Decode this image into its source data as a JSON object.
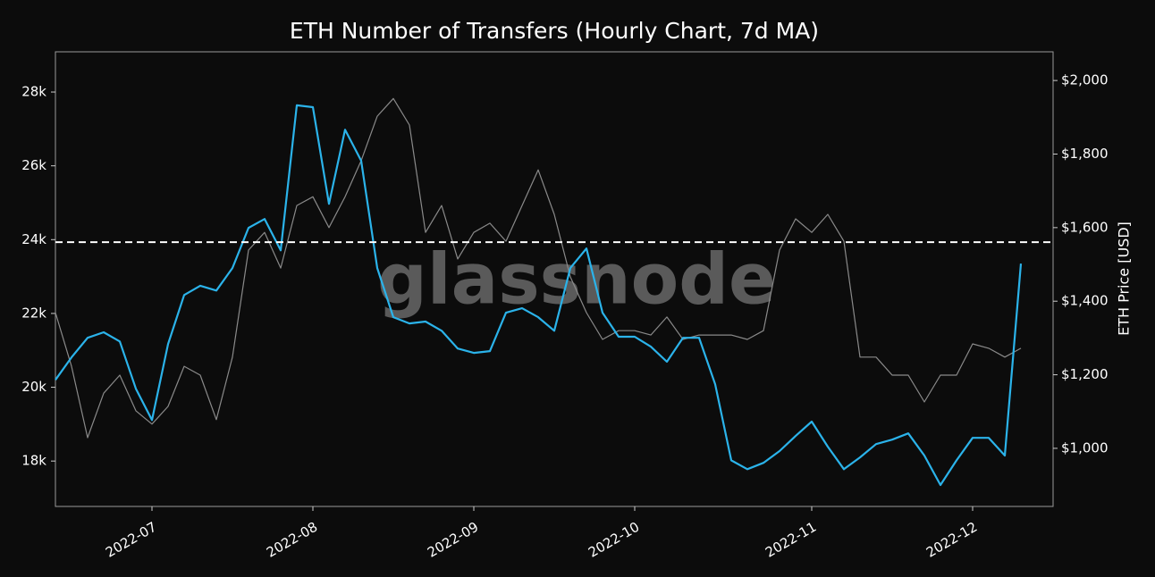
{
  "chart_data": {
    "type": "line",
    "title": "ETH Number of Transfers (Hourly Chart, 7d MA)",
    "y2_label": "ETH Price [USD]",
    "watermark": "glassnode",
    "categories": [
      null,
      null,
      null,
      null,
      null,
      null,
      "2022-07",
      null,
      null,
      null,
      null,
      null,
      null,
      null,
      null,
      null,
      "2022-08",
      null,
      null,
      null,
      null,
      null,
      null,
      null,
      null,
      null,
      "2022-09",
      null,
      null,
      null,
      null,
      null,
      null,
      null,
      null,
      null,
      "2022-10",
      null,
      null,
      null,
      null,
      null,
      null,
      null,
      null,
      null,
      null,
      "2022-11",
      null,
      null,
      null,
      null,
      null,
      null,
      null,
      null,
      null,
      "2022-12",
      null,
      null,
      null,
      null,
      null
    ],
    "series": [
      {
        "name": "Number of Transfers (7d MA)",
        "color": "#2bb3ea",
        "axis": "y",
        "values": [
          20200,
          20810,
          21340,
          21490,
          21240,
          19960,
          19110,
          21170,
          22500,
          22750,
          22620,
          23230,
          24320,
          24560,
          23710,
          27640,
          27590,
          24970,
          26980,
          26140,
          23230,
          21900,
          21730,
          21780,
          21530,
          21050,
          20930,
          20980,
          22020,
          22140,
          21900,
          21530,
          23230,
          23760,
          22020,
          21370,
          21370,
          21100,
          20690,
          21340,
          21340,
          20080,
          18020,
          17780,
          17950,
          18270,
          18680,
          19070,
          18390,
          17780,
          18100,
          18460,
          18580,
          18750,
          18150,
          17350,
          18020,
          18630,
          18630,
          18150,
          23350,
          null,
          null
        ]
      },
      {
        "name": "ETH Price [USD]",
        "color": "#8a8a8a",
        "axis": "y2",
        "values": [
          1369,
          1223,
          1029,
          1150,
          1199,
          1102,
          1066,
          1114,
          1223,
          1199,
          1078,
          1248,
          1539,
          1587,
          1490,
          1660,
          1684,
          1600,
          1684,
          1782,
          1903,
          1951,
          1879,
          1587,
          1660,
          1515,
          1587,
          1612,
          1563,
          1660,
          1757,
          1636,
          1466,
          1369,
          1296,
          1320,
          1320,
          1308,
          1357,
          1296,
          1308,
          1308,
          1308,
          1296,
          1320,
          1539,
          1624,
          1587,
          1636,
          1563,
          1248,
          1248,
          1199,
          1199,
          1126,
          1199,
          1199,
          1284,
          1272,
          1248,
          1272,
          null,
          null
        ]
      }
    ],
    "hline": 23930,
    "ylim": [
      16770,
      29090
    ],
    "yticks": [
      {
        "value": 18000,
        "label": "18k"
      },
      {
        "value": 20000,
        "label": "20k"
      },
      {
        "value": 22000,
        "label": "22k"
      },
      {
        "value": 24000,
        "label": "24k"
      },
      {
        "value": 26000,
        "label": "26k"
      },
      {
        "value": 28000,
        "label": "28k"
      }
    ],
    "y2lim": [
      842,
      2078
    ],
    "y2ticks": [
      {
        "value": 1000,
        "label": "$1,000"
      },
      {
        "value": 1200,
        "label": "$1,200"
      },
      {
        "value": 1400,
        "label": "$1,400"
      },
      {
        "value": 1600,
        "label": "$1,600"
      },
      {
        "value": 1800,
        "label": "$1,800"
      },
      {
        "value": 2000,
        "label": "$2,000"
      }
    ],
    "grid": false
  }
}
